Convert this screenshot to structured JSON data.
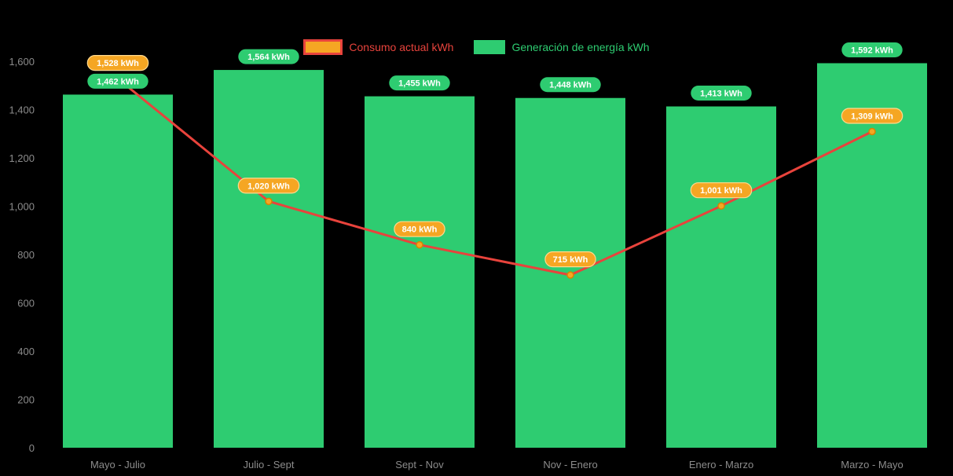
{
  "chart_data": {
    "type": "bar+line",
    "title": "",
    "categories": [
      "Mayo - Julio",
      "Julio - Sept",
      "Sept - Nov",
      "Nov - Enero",
      "Enero - Marzo",
      "Marzo - Mayo"
    ],
    "series": [
      {
        "name": "Consumo actual kWh",
        "type": "line",
        "values": [
          1528,
          1020,
          840,
          715,
          1001,
          1309
        ],
        "labels": [
          "1,528 kWh",
          "1,020 kWh",
          "840 kWh",
          "715 kWh",
          "1,001 kWh",
          "1,309 kWh"
        ],
        "color": "#e8433c",
        "marker_color": "#f5a623",
        "marker_border": "#d98200",
        "label_bg": "#f5a623",
        "label_border": "#ffd98e"
      },
      {
        "name": "Generación de energía kWh",
        "type": "bar",
        "values": [
          1462,
          1564,
          1455,
          1448,
          1413,
          1592
        ],
        "labels": [
          "1,462 kWh",
          "1,564 kWh",
          "1,455 kWh",
          "1,448 kWh",
          "1,413 kWh",
          "1,592 kWh"
        ],
        "color": "#2ecc71",
        "label_bg": "#2ecc71"
      }
    ],
    "ylim": [
      0,
      1600
    ],
    "yticks": [
      0,
      200,
      400,
      600,
      800,
      1000,
      1200,
      1400,
      1600
    ],
    "ytick_labels": [
      "0",
      "200",
      "400",
      "600",
      "800",
      "1,000",
      "1,200",
      "1,400",
      "1,600"
    ],
    "grid": false,
    "legend_position": "top",
    "background": "#000000",
    "axis_label_color": "#8b8b8b"
  }
}
